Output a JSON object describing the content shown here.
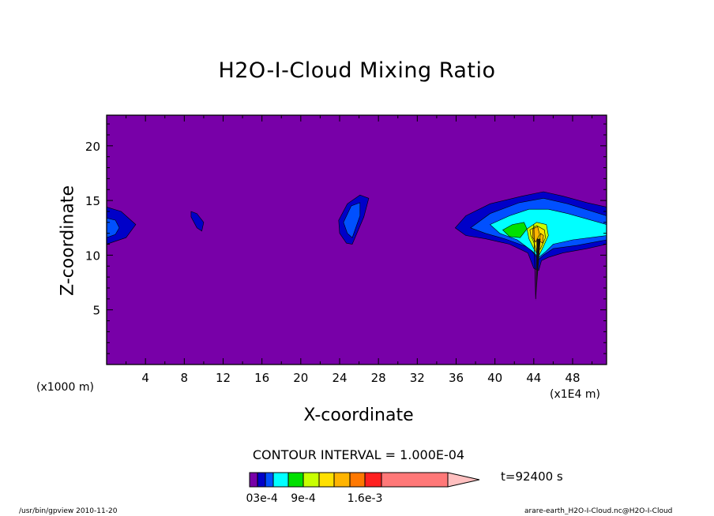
{
  "chart_data": {
    "type": "contour",
    "title": "H2O-I-Cloud Mixing Ratio",
    "xlabel": "X-coordinate",
    "ylabel": "Z-coordinate",
    "x_unit": "(x1E4 m)",
    "y_unit": "(x1000 m)",
    "xlim": [
      0,
      51.5
    ],
    "ylim": [
      0,
      22.8
    ],
    "x_ticks": [
      4,
      8,
      12,
      16,
      20,
      24,
      28,
      32,
      36,
      40,
      44,
      48
    ],
    "y_ticks": [
      5,
      10,
      15,
      20
    ],
    "contour_interval": "CONTOUR INTERVAL = 1.000E-04",
    "time_label": "t=92400 s",
    "colorbar": {
      "tick_labels": [
        "0",
        "3e-4",
        "9e-4",
        "1.6e-3"
      ],
      "bins": [
        {
          "color": "#7800a8"
        },
        {
          "color": "#0000c8"
        },
        {
          "color": "#0050ff"
        },
        {
          "color": "#00ffff"
        },
        {
          "color": "#00e000"
        },
        {
          "color": "#c8ff00"
        },
        {
          "color": "#ffe000"
        },
        {
          "color": "#ffb400"
        },
        {
          "color": "#ff7800"
        },
        {
          "color": "#ff2020"
        },
        {
          "color": "#ff7878"
        },
        {
          "color": "#ffc0c0"
        }
      ]
    },
    "features": [
      {
        "label": "left-edge",
        "levels": [
          {
            "color": "#0000c8",
            "pts": [
              [
                0,
                14.4
              ],
              [
                1.5,
                14.0
              ],
              [
                3.0,
                12.8
              ],
              [
                2.0,
                11.6
              ],
              [
                0,
                11.0
              ]
            ]
          },
          {
            "color": "#0050ff",
            "pts": [
              [
                0,
                13.4
              ],
              [
                0.9,
                13.2
              ],
              [
                1.3,
                12.5
              ],
              [
                0.9,
                11.9
              ],
              [
                0,
                11.6
              ]
            ]
          }
        ]
      },
      {
        "label": "x9-blob",
        "levels": [
          {
            "color": "#0000c8",
            "pts": [
              [
                8.7,
                14.0
              ],
              [
                9.3,
                13.8
              ],
              [
                10.0,
                13.0
              ],
              [
                9.8,
                12.2
              ],
              [
                9.3,
                12.5
              ],
              [
                8.7,
                13.5
              ]
            ]
          }
        ]
      },
      {
        "label": "x25-blob",
        "levels": [
          {
            "color": "#0000c8",
            "pts": [
              [
                23.9,
                13.2
              ],
              [
                24.8,
                14.7
              ],
              [
                26.1,
                15.5
              ],
              [
                27.0,
                15.2
              ],
              [
                26.5,
                13.5
              ],
              [
                25.3,
                11.0
              ],
              [
                24.7,
                11.1
              ],
              [
                24.0,
                12.0
              ]
            ]
          },
          {
            "color": "#0050ff",
            "pts": [
              [
                24.4,
                13.0
              ],
              [
                25.2,
                14.5
              ],
              [
                26.1,
                14.8
              ],
              [
                26.1,
                13.6
              ],
              [
                25.3,
                11.6
              ],
              [
                24.8,
                12.0
              ]
            ]
          }
        ]
      },
      {
        "label": "main-cloud",
        "levels": [
          {
            "color": "#0000c8",
            "pts": [
              [
                35.9,
                12.5
              ],
              [
                37.0,
                13.6
              ],
              [
                39.5,
                14.7
              ],
              [
                42.8,
                15.4
              ],
              [
                45.0,
                15.8
              ],
              [
                47.0,
                15.4
              ],
              [
                49.5,
                14.8
              ],
              [
                51.5,
                14.4
              ],
              [
                51.5,
                11.0
              ],
              [
                49.5,
                10.6
              ],
              [
                47.0,
                10.2
              ],
              [
                45.5,
                9.8
              ],
              [
                44.8,
                9.5
              ],
              [
                44.5,
                8.6
              ],
              [
                44.0,
                8.8
              ],
              [
                43.4,
                10.2
              ],
              [
                41.5,
                11.0
              ],
              [
                39.0,
                11.5
              ],
              [
                37.0,
                11.8
              ]
            ]
          },
          {
            "color": "#0050ff",
            "pts": [
              [
                37.5,
                12.5
              ],
              [
                39.5,
                13.8
              ],
              [
                42.5,
                14.8
              ],
              [
                45.0,
                15.2
              ],
              [
                47.5,
                14.7
              ],
              [
                51.5,
                13.6
              ],
              [
                51.5,
                11.4
              ],
              [
                48.5,
                10.9
              ],
              [
                46.0,
                10.6
              ],
              [
                45.0,
                10.0
              ],
              [
                44.5,
                9.6
              ],
              [
                43.5,
                10.7
              ],
              [
                41.0,
                11.5
              ],
              [
                39.0,
                12.0
              ]
            ]
          },
          {
            "color": "#00ffff",
            "pts": [
              [
                39.5,
                12.8
              ],
              [
                41.5,
                13.6
              ],
              [
                43.5,
                14.2
              ],
              [
                45.5,
                14.2
              ],
              [
                47.5,
                13.8
              ],
              [
                51.5,
                12.8
              ],
              [
                51.5,
                11.8
              ],
              [
                48.0,
                11.4
              ],
              [
                46.0,
                11.0
              ],
              [
                45.2,
                10.3
              ],
              [
                44.5,
                9.8
              ],
              [
                43.8,
                10.4
              ],
              [
                42.3,
                11.4
              ],
              [
                40.5,
                12.0
              ]
            ]
          },
          {
            "color": "#00e000",
            "pts": [
              [
                40.8,
                12.3
              ],
              [
                41.8,
                12.8
              ],
              [
                43.0,
                13.0
              ],
              [
                43.3,
                12.4
              ],
              [
                42.6,
                11.6
              ],
              [
                41.5,
                11.7
              ]
            ]
          },
          {
            "color": "#c8ff00",
            "pts": [
              [
                43.3,
                12.4
              ],
              [
                44.3,
                13.0
              ],
              [
                45.3,
                12.8
              ],
              [
                45.5,
                11.8
              ],
              [
                45.0,
                10.8
              ],
              [
                44.5,
                9.9
              ],
              [
                44.0,
                10.6
              ],
              [
                43.5,
                11.5
              ]
            ]
          },
          {
            "color": "#ffe000",
            "pts": [
              [
                43.6,
                12.3
              ],
              [
                44.3,
                12.7
              ],
              [
                45.1,
                12.3
              ],
              [
                45.2,
                11.6
              ],
              [
                44.7,
                10.6
              ],
              [
                44.3,
                10.3
              ],
              [
                44.0,
                11.2
              ],
              [
                43.7,
                11.8
              ]
            ]
          },
          {
            "color": "#ffb400",
            "pts": [
              [
                43.9,
                12.4
              ],
              [
                44.4,
                12.6
              ],
              [
                44.6,
                11.9
              ],
              [
                44.2,
                11.2
              ],
              [
                43.9,
                11.6
              ]
            ]
          },
          {
            "color": "#ffb400",
            "pts": [
              [
                44.7,
                12.0
              ],
              [
                45.0,
                11.8
              ],
              [
                44.9,
                11.1
              ],
              [
                44.6,
                11.3
              ]
            ]
          }
        ]
      }
    ]
  },
  "footer": {
    "left": "/usr/bin/gpview  2010-11-20",
    "right": "arare-earth_H2O-I-Cloud.nc@H2O-I-Cloud"
  }
}
